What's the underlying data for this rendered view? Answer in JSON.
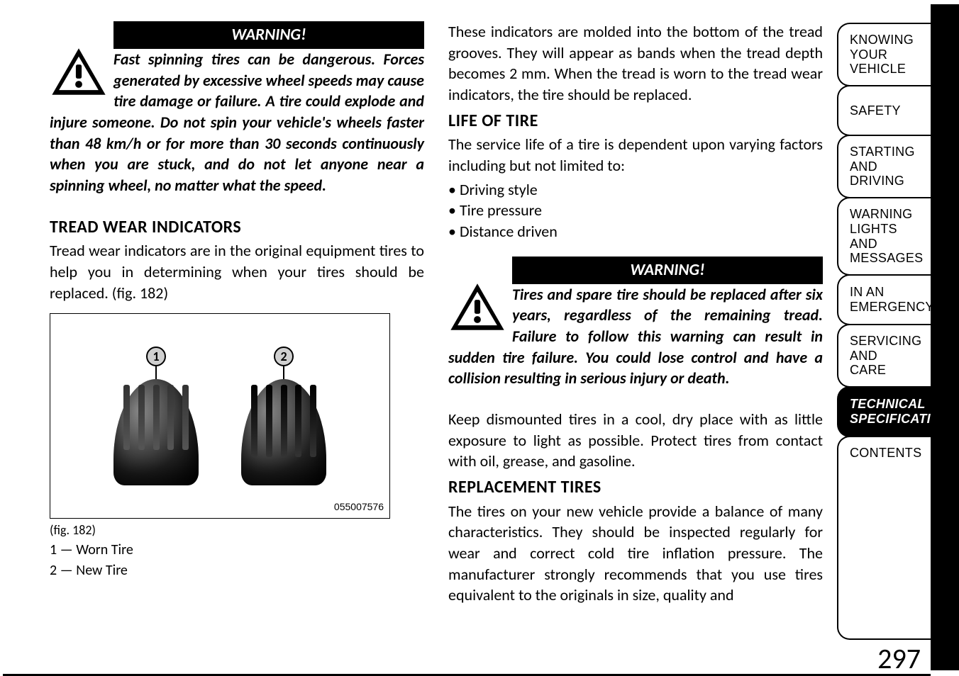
{
  "page_number": "297",
  "warning_label": "WARNING!",
  "col_left": {
    "warning1_text": "Fast spinning tires can be dangerous. Forces generated by excessive wheel speeds may cause tire damage or failure. A tire could explode and injure someone. Do not spin your vehicle's wheels faster than 48 km/h or for more than 30 seconds continuously when you are stuck, and do not let anyone near a spinning wheel, no matter what the speed.",
    "heading_tread": "TREAD WEAR INDICATORS",
    "tread_text": "Tread wear indicators are in the original equipment tires to help you in determining when your tires should be replaced. (fig.  182)",
    "fig_code": "055007576",
    "fig_caption": "(fig. 182)",
    "legend1": "1 — Worn Tire",
    "legend2": "2 — New Tire",
    "callout1": "1",
    "callout2": "2"
  },
  "col_right": {
    "intro_text": "These indicators are molded into the bottom of the tread grooves. They will appear as bands when the tread depth becomes 2 mm. When the tread is worn to the tread wear indicators, the tire should be replaced.",
    "heading_life": "LIFE OF TIRE",
    "life_text": "The service life of a tire is dependent upon varying factors including but not limited to:",
    "bullets": [
      "Driving style",
      "Tire pressure",
      "Distance driven"
    ],
    "warning2_text": "Tires and spare tire should be replaced after six years, regardless of the remaining tread. Failure to follow this warning can result in sudden tire failure. You could lose control and have a collision resulting in serious injury or death.",
    "storage_text": "Keep dismounted tires in a cool, dry place with as little exposure to light as possible. Protect tires from contact with oil, grease, and gasoline.",
    "heading_replace": "REPLACEMENT TIRES",
    "replace_text": "The tires on your new vehicle provide a balance of many characteristics. They should be inspected regularly for wear and correct cold tire inflation pressure. The manufacturer strongly recommends that you use tires equivalent to the originals in size, quality and"
  },
  "tabs": [
    {
      "label": "KNOWING\nYOUR\nVEHICLE",
      "active": false
    },
    {
      "label": "SAFETY",
      "active": false
    },
    {
      "label": "STARTING\nAND\nDRIVING",
      "active": false
    },
    {
      "label": "WARNING\nLIGHTS\nAND\nMESSAGES",
      "active": false
    },
    {
      "label": "IN AN\nEMERGENCY",
      "active": false
    },
    {
      "label": "SERVICING\nAND\nCARE",
      "active": false
    },
    {
      "label": "TECHNICAL\nSPECIFICATIONS",
      "active": true
    },
    {
      "label": "CONTENTS",
      "active": false
    }
  ],
  "colors": {
    "black": "#000000",
    "white": "#ffffff"
  }
}
